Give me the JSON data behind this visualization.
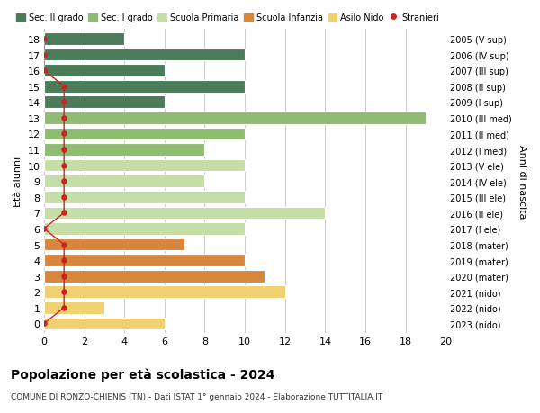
{
  "ages": [
    18,
    17,
    16,
    15,
    14,
    13,
    12,
    11,
    10,
    9,
    8,
    7,
    6,
    5,
    4,
    3,
    2,
    1,
    0
  ],
  "right_labels": [
    "2005 (V sup)",
    "2006 (IV sup)",
    "2007 (III sup)",
    "2008 (II sup)",
    "2009 (I sup)",
    "2010 (III med)",
    "2011 (II med)",
    "2012 (I med)",
    "2013 (V ele)",
    "2014 (IV ele)",
    "2015 (III ele)",
    "2016 (II ele)",
    "2017 (I ele)",
    "2018 (mater)",
    "2019 (mater)",
    "2020 (mater)",
    "2021 (nido)",
    "2022 (nido)",
    "2023 (nido)"
  ],
  "bar_values": [
    4,
    10,
    6,
    10,
    6,
    19,
    10,
    8,
    10,
    8,
    10,
    14,
    10,
    7,
    10,
    11,
    12,
    3,
    6
  ],
  "bar_colors": [
    "#4a7c59",
    "#4a7c59",
    "#4a7c59",
    "#4a7c59",
    "#4a7c59",
    "#8fbc72",
    "#8fbc72",
    "#8fbc72",
    "#c5dea8",
    "#c5dea8",
    "#c5dea8",
    "#c5dea8",
    "#c5dea8",
    "#d9863d",
    "#d9863d",
    "#d9863d",
    "#f0d070",
    "#f0d070",
    "#f0d070"
  ],
  "stranieri_x": [
    0,
    0,
    0,
    1,
    1,
    1,
    1,
    1,
    1,
    1,
    1,
    1,
    0,
    1,
    1,
    1,
    1,
    1,
    0
  ],
  "title": "Popolazione per età scolastica - 2024",
  "subtitle": "COMUNE DI RONZO-CHIENIS (TN) - Dati ISTAT 1° gennaio 2024 - Elaborazione TUTTITALIA.IT",
  "ylabel_left": "Età alunni",
  "ylabel_right": "Anni di nascita",
  "xlim": [
    0,
    20
  ],
  "ylim": [
    -0.6,
    18.6
  ],
  "xticks": [
    0,
    2,
    4,
    6,
    8,
    10,
    12,
    14,
    16,
    18,
    20
  ],
  "legend_labels": [
    "Sec. II grado",
    "Sec. I grado",
    "Scuola Primaria",
    "Scuola Infanzia",
    "Asilo Nido",
    "Stranieri"
  ],
  "legend_colors": [
    "#4a7c59",
    "#8fbc72",
    "#c5dea8",
    "#d9863d",
    "#f0d070",
    "#cc2222"
  ],
  "color_stranieri": "#cc2222",
  "grid_color": "#cccccc",
  "bg_color": "#ffffff",
  "bar_height": 0.78
}
